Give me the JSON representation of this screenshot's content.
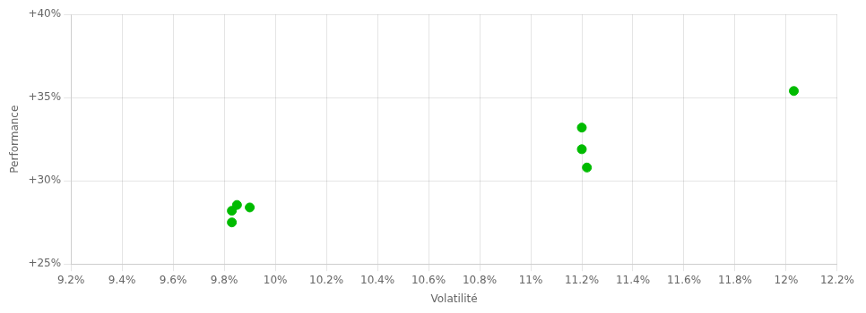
{
  "chart_data": {
    "type": "scatter",
    "xlabel": "Volatilité",
    "ylabel": "Performance",
    "x": [
      0.0985,
      0.099,
      0.0983,
      0.0983,
      0.112,
      0.112,
      0.1122,
      0.1203
    ],
    "values": [
      0.2855,
      0.284,
      0.282,
      0.275,
      0.332,
      0.319,
      0.308,
      0.354
    ],
    "color": "#00bb00",
    "xlim": [
      0.092,
      0.122
    ],
    "ylim": [
      0.25,
      0.4
    ],
    "xticks": [
      {
        "value": 0.092,
        "label": "9.2%"
      },
      {
        "value": 0.094,
        "label": "9.4%"
      },
      {
        "value": 0.096,
        "label": "9.6%"
      },
      {
        "value": 0.098,
        "label": "9.8%"
      },
      {
        "value": 0.1,
        "label": "10%"
      },
      {
        "value": 0.102,
        "label": "10.2%"
      },
      {
        "value": 0.104,
        "label": "10.4%"
      },
      {
        "value": 0.106,
        "label": "10.6%"
      },
      {
        "value": 0.108,
        "label": "10.8%"
      },
      {
        "value": 0.11,
        "label": "11%"
      },
      {
        "value": 0.112,
        "label": "11.2%"
      },
      {
        "value": 0.114,
        "label": "11.4%"
      },
      {
        "value": 0.116,
        "label": "11.6%"
      },
      {
        "value": 0.118,
        "label": "11.8%"
      },
      {
        "value": 0.12,
        "label": "12%"
      },
      {
        "value": 0.122,
        "label": "12.2%"
      }
    ],
    "yticks": [
      {
        "value": 0.25,
        "label": "+25%"
      },
      {
        "value": 0.3,
        "label": "+30%"
      },
      {
        "value": 0.35,
        "label": "+35%"
      },
      {
        "value": 0.4,
        "label": "+40%"
      }
    ],
    "grid": true
  }
}
